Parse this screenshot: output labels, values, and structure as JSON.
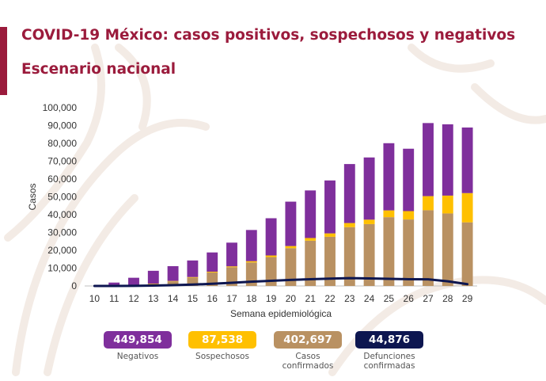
{
  "header": {
    "title": "COVID-19 México: casos positivos, sospechosos y negativos",
    "subtitle": "Escenario nacional"
  },
  "colors": {
    "brand": "#9b1b3c",
    "negativos": "#7f2f9c",
    "sospechosos": "#ffc000",
    "confirmados": "#b99162",
    "defunciones": "#0d1650"
  },
  "totals": [
    {
      "value": "449,854",
      "label": "Negativos",
      "color": "#7f2f9c",
      "text_color": "#ffffff"
    },
    {
      "value": "87,538",
      "label": "Sospechosos",
      "color": "#ffc000",
      "text_color": "#ffffff"
    },
    {
      "value": "402,697",
      "label": "Casos\nconfirmados",
      "color": "#b99162",
      "text_color": "#ffffff"
    },
    {
      "value": "44,876",
      "label": "Defunciones\nconfirmadas",
      "color": "#0d1650",
      "text_color": "#ffffff"
    }
  ],
  "chart_data": {
    "type": "bar",
    "stacked": true,
    "xlabel": "Semana epidemiológica",
    "ylabel": "Casos",
    "ylim": [
      0,
      100000
    ],
    "yticks": [
      0,
      10000,
      20000,
      30000,
      40000,
      50000,
      60000,
      70000,
      80000,
      90000,
      100000
    ],
    "ytick_labels": [
      "0",
      "10,000",
      "20,000",
      "30,000",
      "40,000",
      "50,000",
      "60,000",
      "70,000",
      "80,000",
      "90,000",
      "100,000"
    ],
    "categories": [
      "10",
      "11",
      "12",
      "13",
      "14",
      "15",
      "16",
      "17",
      "18",
      "19",
      "20",
      "21",
      "22",
      "23",
      "24",
      "25",
      "26",
      "27",
      "28",
      "29"
    ],
    "series": [
      {
        "name": "Casos confirmados",
        "color": "#b99162",
        "values": [
          0,
          100,
          400,
          1200,
          2600,
          4700,
          7600,
          10500,
          13200,
          16200,
          21200,
          25400,
          27600,
          33000,
          34700,
          38600,
          37300,
          42500,
          40700,
          35700
        ]
      },
      {
        "name": "Sospechosos",
        "color": "#ffc000",
        "values": [
          0,
          0,
          0,
          100,
          200,
          300,
          400,
          500,
          700,
          900,
          1200,
          1500,
          1900,
          2300,
          2500,
          3800,
          4700,
          7900,
          10000,
          16400
        ]
      },
      {
        "name": "Negativos",
        "color": "#7f2f9c",
        "values": [
          0,
          1800,
          4200,
          7200,
          8300,
          9300,
          10800,
          13300,
          17500,
          20900,
          24900,
          26700,
          29700,
          33100,
          34900,
          37700,
          35000,
          41000,
          40000,
          36800
        ]
      },
      {
        "name": "Defunciones confirmadas",
        "type": "line",
        "color": "#0d1650",
        "values": [
          0,
          10,
          60,
          200,
          450,
          800,
          1200,
          1800,
          2400,
          2900,
          3400,
          3800,
          4100,
          4400,
          4200,
          4000,
          3800,
          3700,
          2600,
          1000
        ]
      }
    ],
    "grid": false,
    "legend": "bottom"
  }
}
